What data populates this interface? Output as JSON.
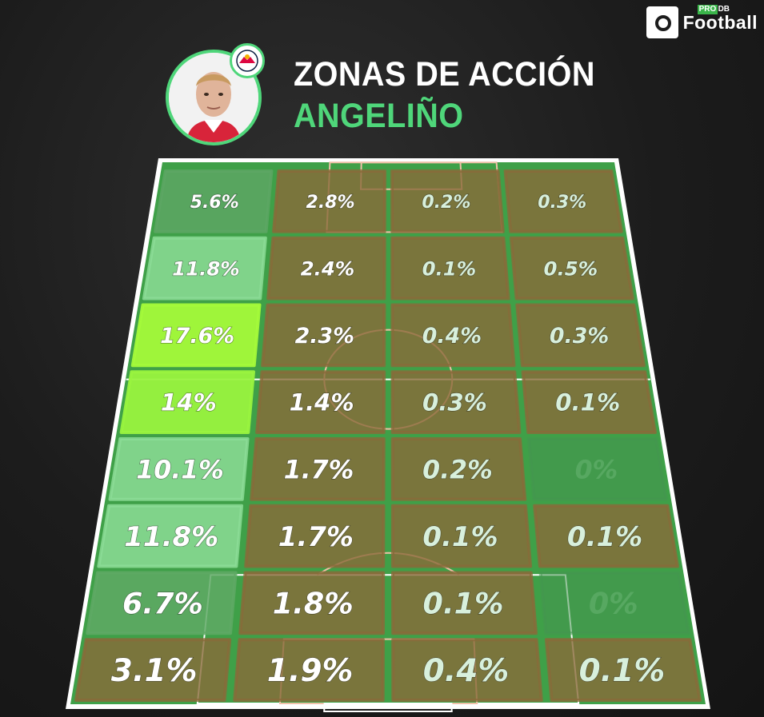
{
  "header": {
    "title": "ZONAS DE ACCIÓN",
    "subtitle": "ANGELIÑO"
  },
  "logo": {
    "pro": "PRO",
    "db": "DB",
    "name": "Football"
  },
  "colors": {
    "title": "#ffffff",
    "subtitle": "#4fd67a",
    "pitch": "#3fa048",
    "pitch_line": "#ffffff",
    "box_line": "#f0c0a8",
    "low": "#8a6a3a",
    "high": "#a4ff3a"
  },
  "chart_data": {
    "type": "heatmap",
    "title": "ZONAS DE ACCIÓN",
    "subtitle": "ANGELIÑO",
    "rows": 8,
    "cols": 4,
    "orientation": "row 0 = attacking end (top), row 7 = own goal (bottom); col 0 = left touchline",
    "labels": [
      [
        "5.6%",
        "2.8%",
        "0.2%",
        "0.3%"
      ],
      [
        "11.8%",
        "2.4%",
        "0.1%",
        "0.5%"
      ],
      [
        "17.6%",
        "2.3%",
        "0.4%",
        "0.3%"
      ],
      [
        "14%",
        "1.4%",
        "0.3%",
        "0.1%"
      ],
      [
        "10.1%",
        "1.7%",
        "0.2%",
        "0%"
      ],
      [
        "11.8%",
        "1.7%",
        "0.1%",
        "0.1%"
      ],
      [
        "6.7%",
        "1.8%",
        "0.1%",
        "0%"
      ],
      [
        "3.1%",
        "1.9%",
        "0.4%",
        "0.1%"
      ]
    ],
    "values": [
      [
        5.6,
        2.8,
        0.2,
        0.3
      ],
      [
        11.8,
        2.4,
        0.1,
        0.5
      ],
      [
        17.6,
        2.3,
        0.4,
        0.3
      ],
      [
        14,
        1.4,
        0.3,
        0.1
      ],
      [
        10.1,
        1.7,
        0.2,
        0
      ],
      [
        11.8,
        1.7,
        0.1,
        0.1
      ],
      [
        6.7,
        1.8,
        0.1,
        0
      ],
      [
        3.1,
        1.9,
        0.4,
        0.1
      ]
    ]
  }
}
